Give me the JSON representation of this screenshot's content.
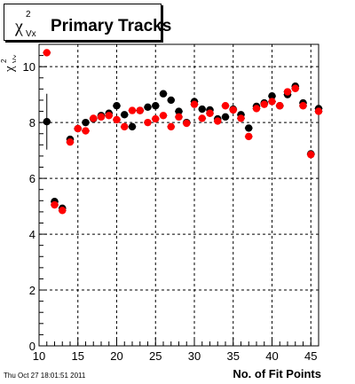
{
  "footer": {
    "timestamp": "Thu Oct 27 18:01:51 2011"
  },
  "chart_data": {
    "type": "scatter",
    "title": "Primary Tracks",
    "title_symbol": {
      "main": "χ",
      "sup": "2",
      "sub": "Vx"
    },
    "xlabel": "No. of Fit Points",
    "ylabel_symbol": {
      "main": "χ",
      "sup": "2",
      "sub": "Vx"
    },
    "xlim": [
      10,
      46
    ],
    "ylim": [
      0,
      10.8
    ],
    "x_ticks": [
      10,
      15,
      20,
      25,
      30,
      35,
      40,
      45
    ],
    "y_ticks": [
      0,
      2,
      4,
      6,
      8,
      10
    ],
    "grid": true,
    "colors": {
      "series_black": "#000000",
      "series_red": "#ff0000"
    },
    "series": [
      {
        "color": "#000000",
        "x": [
          11,
          12,
          13,
          14,
          15,
          16,
          17,
          18,
          19,
          20,
          21,
          22,
          23,
          24,
          25,
          26,
          27,
          28,
          29,
          30,
          31,
          32,
          33,
          34,
          35,
          36,
          37,
          38,
          39,
          40,
          41,
          42,
          43,
          44,
          45,
          46
        ],
        "y": [
          8.03,
          5.17,
          4.93,
          7.4,
          7.78,
          8.0,
          8.13,
          8.25,
          8.33,
          8.6,
          8.28,
          7.85,
          8.43,
          8.55,
          8.6,
          9.03,
          8.8,
          8.4,
          8.0,
          8.75,
          8.48,
          8.45,
          8.13,
          8.2,
          8.48,
          8.28,
          7.8,
          8.58,
          8.7,
          8.95,
          8.6,
          9.0,
          9.3,
          8.7,
          6.88,
          8.5
        ],
        "yerr": [
          1.0,
          0.1,
          0.1,
          0.1,
          0.1,
          0.1,
          0.1,
          0.1,
          0.1,
          0.1,
          0.1,
          0.1,
          0.1,
          0.1,
          0.1,
          0.1,
          0.1,
          0.1,
          0.1,
          0.1,
          0.1,
          0.1,
          0.1,
          0.1,
          0.1,
          0.1,
          0.1,
          0.1,
          0.1,
          0.1,
          0.1,
          0.1,
          0.1,
          0.1,
          0.1,
          0.1
        ]
      },
      {
        "color": "#ff0000",
        "x": [
          11,
          12,
          13,
          14,
          15,
          16,
          17,
          18,
          19,
          20,
          21,
          22,
          23,
          24,
          25,
          26,
          27,
          28,
          29,
          30,
          31,
          32,
          33,
          34,
          35,
          36,
          37,
          38,
          39,
          40,
          41,
          42,
          43,
          44,
          45,
          46
        ],
        "y": [
          10.5,
          5.05,
          4.85,
          7.3,
          7.78,
          7.7,
          8.15,
          8.2,
          8.25,
          8.1,
          7.85,
          8.43,
          8.43,
          8.0,
          8.13,
          8.25,
          7.85,
          8.2,
          7.97,
          8.65,
          8.15,
          8.33,
          8.05,
          8.6,
          8.45,
          8.15,
          7.5,
          8.5,
          8.65,
          8.75,
          8.6,
          9.1,
          9.22,
          8.6,
          6.85,
          8.4
        ],
        "yerr": [
          0.1,
          0.1,
          0.1,
          0.1,
          0.1,
          0.1,
          0.1,
          0.1,
          0.1,
          0.1,
          0.1,
          0.1,
          0.1,
          0.1,
          0.1,
          0.1,
          0.1,
          0.1,
          0.1,
          0.1,
          0.1,
          0.1,
          0.1,
          0.1,
          0.1,
          0.1,
          0.1,
          0.1,
          0.1,
          0.1,
          0.1,
          0.1,
          0.1,
          0.1,
          0.1,
          0.1
        ]
      }
    ]
  }
}
